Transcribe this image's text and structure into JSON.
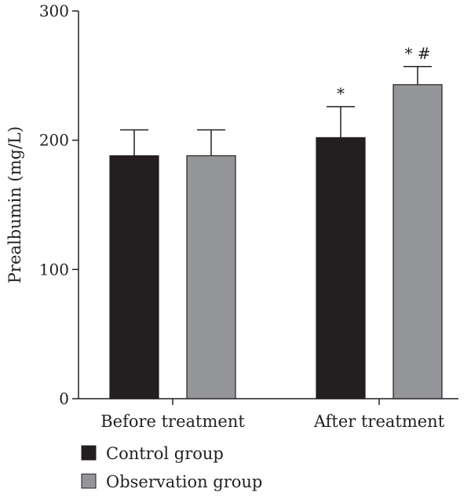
{
  "chart_data": {
    "type": "bar",
    "title": "",
    "xlabel": "",
    "ylabel": "Prealbumin (mg/L)",
    "ylim": [
      0,
      300
    ],
    "yticks": [
      "0",
      "100",
      "200",
      "300"
    ],
    "categories": [
      "Before treatment",
      "After treatment"
    ],
    "series": [
      {
        "name": "Control group",
        "color": "#231f20",
        "values": [
          188,
          202
        ],
        "errors": [
          20,
          24
        ],
        "annotations": [
          "",
          "*"
        ]
      },
      {
        "name": "Observation group",
        "color": "#939598",
        "values": [
          188,
          243
        ],
        "errors": [
          20,
          14
        ],
        "annotations": [
          "",
          "* #"
        ]
      }
    ],
    "legend_position": "bottom-left",
    "grid": false
  }
}
